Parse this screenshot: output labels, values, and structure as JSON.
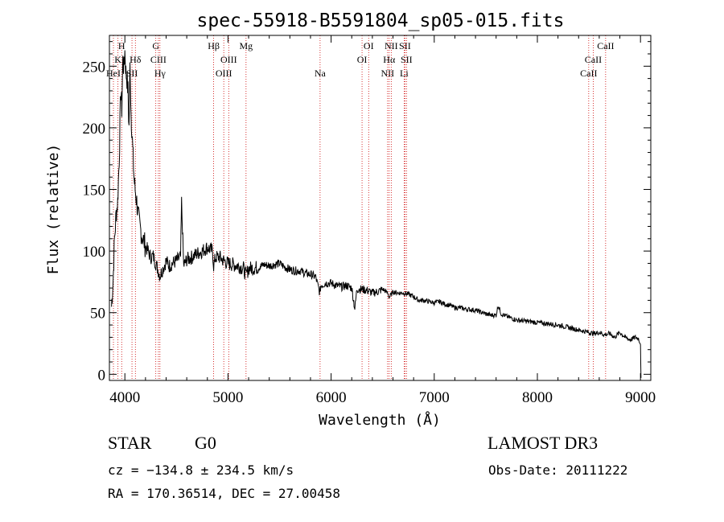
{
  "chart_data": {
    "type": "line",
    "title": "spec-55918-B5591804_sp05-015.fits",
    "xlabel": "Wavelength (Å)",
    "ylabel": "Flux (relative)",
    "xlim": [
      3850,
      9100
    ],
    "ylim": [
      -5,
      275
    ],
    "xticks": [
      4000,
      5000,
      6000,
      7000,
      8000,
      9000
    ],
    "yticks": [
      0,
      50,
      100,
      150,
      200,
      250
    ],
    "series": [
      {
        "name": "flux",
        "x": [
          3870,
          3885,
          3900,
          3915,
          3930,
          3945,
          3960,
          3970,
          3980,
          3990,
          4000,
          4010,
          4020,
          4030,
          4040,
          4050,
          4060,
          4070,
          4080,
          4090,
          4100,
          4115,
          4130,
          4150,
          4175,
          4200,
          4225,
          4250,
          4275,
          4300,
          4320,
          4340,
          4360,
          4380,
          4400,
          4430,
          4460,
          4500,
          4540,
          4550,
          4570,
          4600,
          4650,
          4700,
          4750,
          4800,
          4850,
          4861,
          4880,
          4920,
          4960,
          5000,
          5050,
          5100,
          5150,
          5175,
          5200,
          5250,
          5300,
          5350,
          5400,
          5450,
          5500,
          5550,
          5600,
          5650,
          5700,
          5750,
          5800,
          5850,
          5890,
          5900,
          5950,
          6000,
          6050,
          6100,
          6150,
          6200,
          6230,
          6250,
          6300,
          6350,
          6400,
          6450,
          6500,
          6550,
          6563,
          6600,
          6650,
          6700,
          6750,
          6800,
          6850,
          6900,
          6950,
          7000,
          7050,
          7100,
          7150,
          7200,
          7250,
          7300,
          7400,
          7500,
          7550,
          7600,
          7620,
          7650,
          7700,
          7800,
          7900,
          8000,
          8100,
          8200,
          8300,
          8400,
          8500,
          8550,
          8600,
          8650,
          8700,
          8750,
          8800,
          8850,
          8900,
          8950,
          8980,
          9000,
          9005
        ],
        "values": [
          55,
          75,
          110,
          130,
          140,
          175,
          230,
          215,
          255,
          248,
          262,
          245,
          240,
          230,
          200,
          250,
          212,
          195,
          175,
          158,
          150,
          140,
          128,
          118,
          110,
          104,
          100,
          95,
          96,
          90,
          85,
          80,
          84,
          88,
          92,
          88,
          90,
          92,
          95,
          140,
          88,
          93,
          95,
          98,
          100,
          103,
          100,
          88,
          95,
          95,
          92,
          90,
          89,
          88,
          86,
          80,
          86,
          86,
          87,
          89,
          88,
          89,
          90,
          87,
          85,
          84,
          84,
          82,
          81,
          79,
          66,
          72,
          74,
          74,
          72,
          71,
          72,
          70,
          53,
          69,
          69,
          68,
          66,
          67,
          69,
          66,
          62,
          67,
          66,
          66,
          65,
          63,
          60,
          60,
          59,
          58,
          59,
          57,
          56,
          54,
          54,
          53,
          52,
          49,
          48,
          48,
          56,
          49,
          47,
          44,
          43,
          42,
          41,
          40,
          38,
          36,
          34,
          33,
          34,
          32,
          33,
          30,
          34,
          30,
          28,
          30,
          29,
          25,
          -3
        ]
      }
    ],
    "lines": [
      {
        "name": "K",
        "x": 3933,
        "row": 1
      },
      {
        "name": "H",
        "x": 3969,
        "row": 0
      },
      {
        "name": "HeI",
        "x": 3889,
        "row": 2
      },
      {
        "name": "SII",
        "x": 4069,
        "row": 2
      },
      {
        "name": "Hδ",
        "x": 4102,
        "row": 1
      },
      {
        "name": "G",
        "x": 4300,
        "row": 0
      },
      {
        "name": "CIII",
        "x": 4325,
        "row": 1
      },
      {
        "name": "Hγ",
        "x": 4340,
        "row": 2
      },
      {
        "name": "Hβ",
        "x": 4861,
        "row": 0
      },
      {
        "name": "OIII",
        "x": 4959,
        "row": 2
      },
      {
        "name": "OIII",
        "x": 5007,
        "row": 1
      },
      {
        "name": "Mg",
        "x": 5175,
        "row": 0
      },
      {
        "name": "Na",
        "x": 5893,
        "row": 2
      },
      {
        "name": "OI",
        "x": 6300,
        "row": 1
      },
      {
        "name": "OI",
        "x": 6364,
        "row": 0
      },
      {
        "name": "NII",
        "x": 6548,
        "row": 2
      },
      {
        "name": "NII",
        "x": 6583,
        "row": 0
      },
      {
        "name": "Hα",
        "x": 6563,
        "row": 1
      },
      {
        "name": "SII",
        "x": 6716,
        "row": 0
      },
      {
        "name": "SII",
        "x": 6731,
        "row": 1
      },
      {
        "name": "Li",
        "x": 6708,
        "row": 2
      },
      {
        "name": "CaII",
        "x": 8498,
        "row": 2
      },
      {
        "name": "CaII",
        "x": 8542,
        "row": 1
      },
      {
        "name": "CaII",
        "x": 8662,
        "row": 0
      }
    ],
    "line_color": "#cc0000"
  },
  "info": {
    "object_type": "STAR",
    "subclass": "G0",
    "survey": "LAMOST DR3",
    "cz": "cz = −134.8 ± 234.5 km/s",
    "obs_date": "Obs-Date: 20111222",
    "coords": "RA = 170.36514, DEC =  27.00458"
  }
}
